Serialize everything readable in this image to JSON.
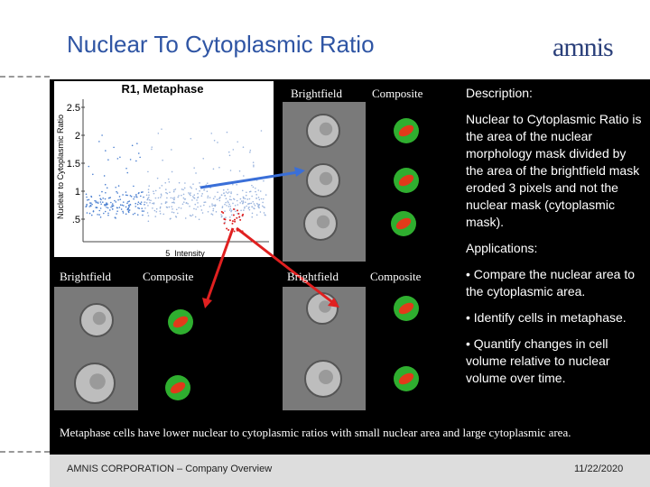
{
  "header": {
    "title": "Nuclear To Cytoplasmic Ratio",
    "logo": "amnis"
  },
  "plot": {
    "title": "R1, Metaphase",
    "y_axis_label": "Nuclear to Cytoplasmic Ratio",
    "x_axis_label": "5_Intensity",
    "y_tick_labels": [
      "2.5",
      "2",
      "1.5",
      "1",
      ".5"
    ]
  },
  "panels": {
    "top": [
      "Brightfield",
      "Composite"
    ],
    "bottom_left": [
      "Brightfield",
      "Composite"
    ],
    "bottom_right": [
      "Brightfield",
      "Composite"
    ]
  },
  "description": {
    "heading": "Description:",
    "term": "Nuclear to Cytoplasmic Ratio",
    "text": "is the area of the nuclear morphology mask divided by the area of the brightfield mask eroded 3 pixels and not the nuclear mask (cytoplasmic mask)."
  },
  "applications": {
    "heading": "Applications:",
    "items": [
      "• Compare the nuclear area to the cytoplasmic area.",
      "• Identify cells in metaphase.",
      "• Quantify changes in cell volume relative to nuclear volume over time."
    ]
  },
  "caption": "Metaphase cells have lower nuclear to cytoplasmic ratios with small nuclear area and large cytoplasmic area.",
  "footer": {
    "company": "AMNIS CORPORATION – Company Overview",
    "date": "11/22/2020"
  }
}
